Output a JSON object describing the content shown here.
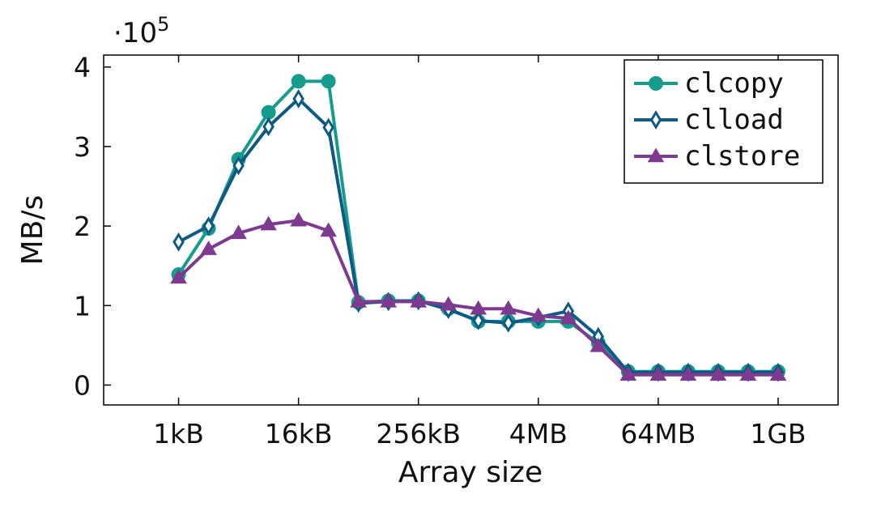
{
  "chart_data": {
    "type": "line",
    "xlabel": "Array size",
    "ylabel": "MB/s",
    "y_multiplier_label": "·10",
    "y_multiplier_exponent": "5",
    "x_tick_labels": [
      "1kB",
      "16kB",
      "256kB",
      "4MB",
      "64MB",
      "1GB"
    ],
    "x_tick_log2_values": [
      10,
      14,
      18,
      22,
      26,
      30
    ],
    "y_tick_labels": [
      "0",
      "1",
      "2",
      "3",
      "4"
    ],
    "y_tick_values": [
      0,
      1,
      2,
      3,
      4
    ],
    "xlim_log2": [
      7.5,
      32
    ],
    "ylim": [
      -0.25,
      4.15
    ],
    "y_units_note": "values in units of 10^5 MB/s",
    "legend_position": "top-right",
    "series": [
      {
        "name": "clcopy",
        "color": "#169c8c",
        "marker": "circle",
        "x_log2": [
          10,
          11,
          12,
          13,
          14,
          15,
          16,
          17,
          18,
          19,
          20,
          21,
          22,
          23,
          24,
          25,
          26,
          27,
          28,
          29,
          30
        ],
        "values": [
          1.39,
          1.97,
          2.84,
          3.43,
          3.82,
          3.82,
          1.04,
          1.06,
          1.06,
          0.96,
          0.8,
          0.8,
          0.8,
          0.8,
          0.53,
          0.17,
          0.17,
          0.17,
          0.17,
          0.17,
          0.17
        ]
      },
      {
        "name": "clload",
        "color": "#0e5a84",
        "marker": "diamond",
        "x_log2": [
          10,
          11,
          12,
          13,
          14,
          15,
          16,
          17,
          18,
          19,
          20,
          21,
          22,
          23,
          24,
          25,
          26,
          27,
          28,
          29,
          30
        ],
        "values": [
          1.8,
          2.0,
          2.76,
          3.25,
          3.6,
          3.24,
          1.03,
          1.05,
          1.06,
          0.95,
          0.81,
          0.78,
          0.85,
          0.93,
          0.61,
          0.16,
          0.16,
          0.16,
          0.16,
          0.16,
          0.16
        ]
      },
      {
        "name": "clstore",
        "color": "#7e3a8e",
        "marker": "triangle",
        "x_log2": [
          10,
          11,
          12,
          13,
          14,
          15,
          16,
          17,
          18,
          19,
          20,
          21,
          22,
          23,
          24,
          25,
          26,
          27,
          28,
          29,
          30
        ],
        "values": [
          1.35,
          1.71,
          1.91,
          2.02,
          2.07,
          1.94,
          1.05,
          1.05,
          1.05,
          1.01,
          0.96,
          0.96,
          0.87,
          0.84,
          0.49,
          0.13,
          0.13,
          0.13,
          0.13,
          0.13,
          0.13
        ]
      }
    ]
  }
}
